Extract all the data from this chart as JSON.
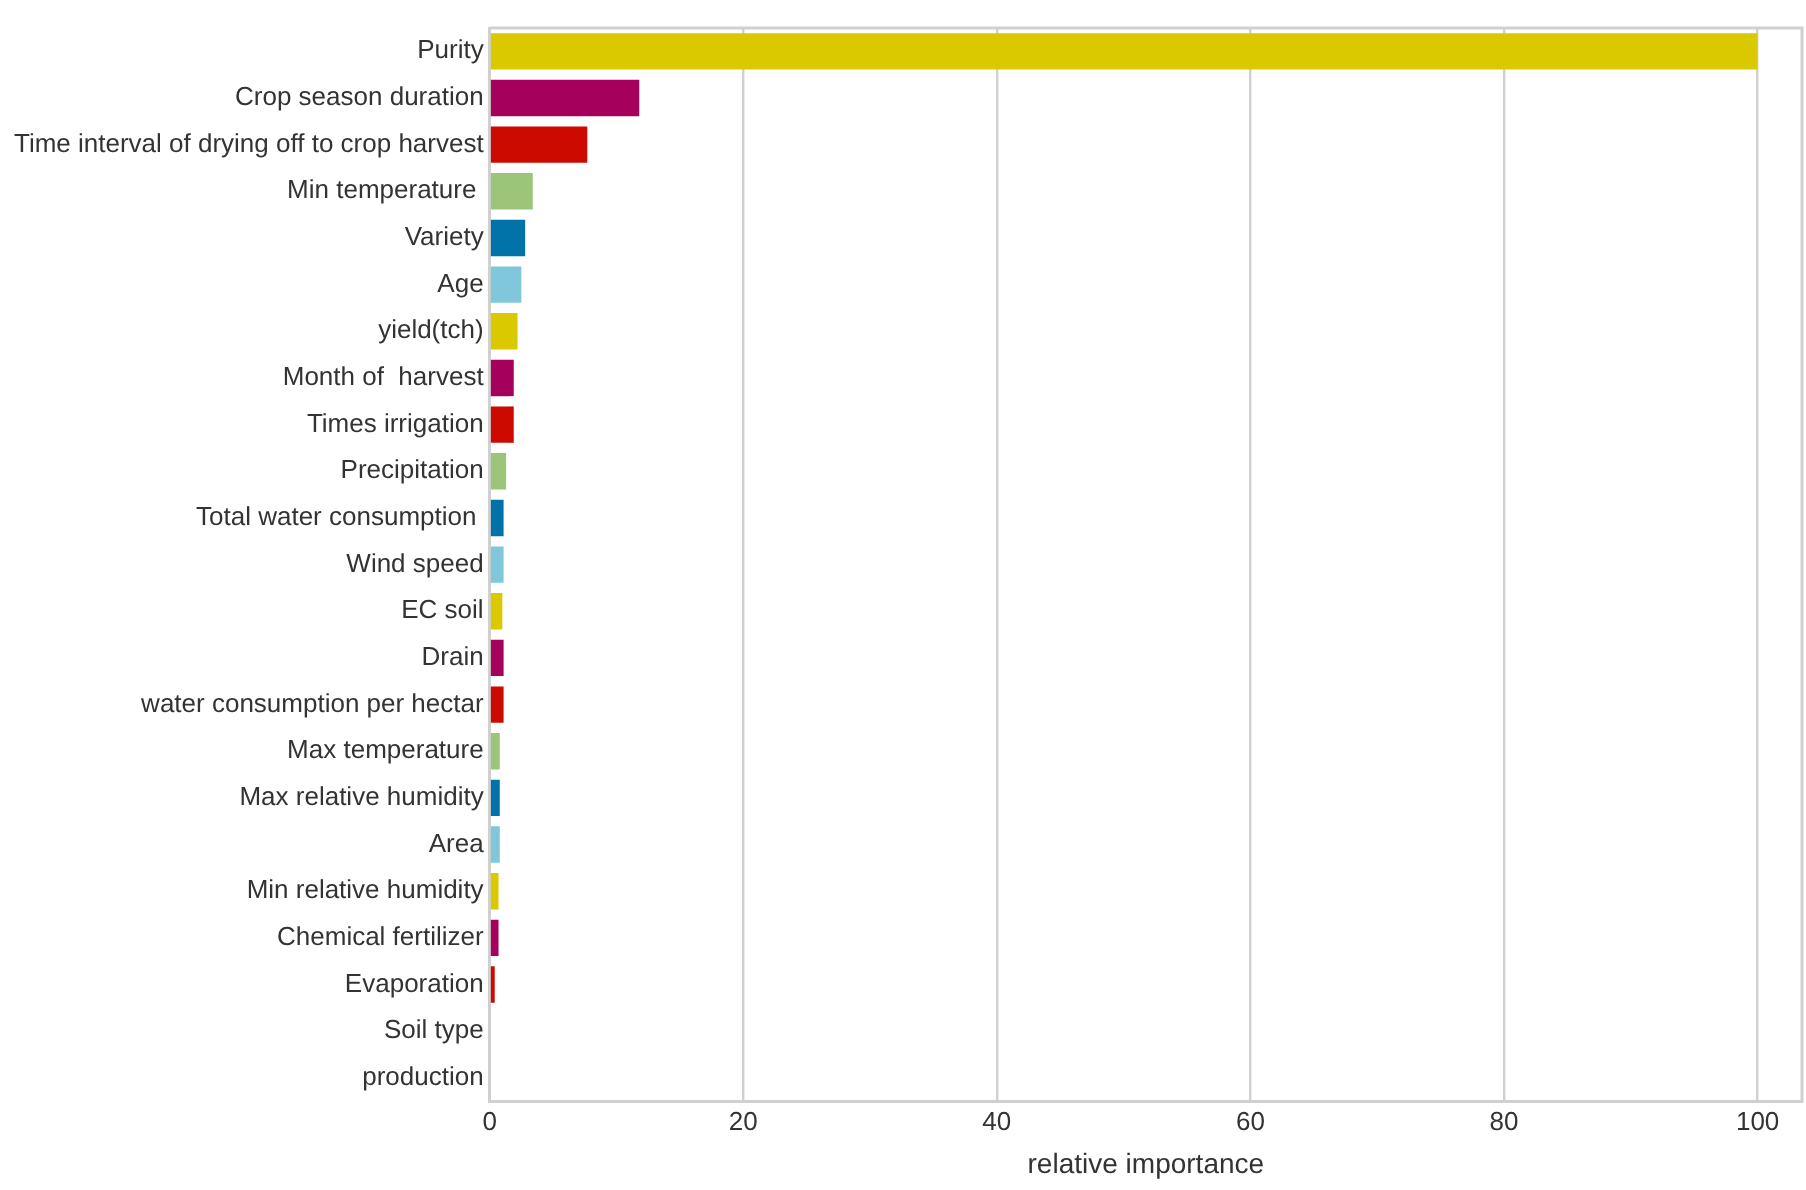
{
  "chart_data": {
    "type": "bar",
    "orientation": "horizontal",
    "xlabel": "relative importance",
    "categories": [
      "Purity",
      "Crop season duration",
      "Time interval of drying off to crop harvest",
      "Min temperature ",
      "Variety",
      "Age",
      "yield(tch)",
      "Month of  harvest",
      "Times irrigation",
      "Precipitation",
      "Total water consumption ",
      "Wind speed",
      "EC soil",
      "Drain",
      "water consumption per hectar",
      "Max temperature",
      "Max relative humidity",
      "Area",
      "Min relative humidity",
      "Chemical fertilizer",
      "Evaporation",
      "Soil type",
      "production"
    ],
    "values": [
      100,
      11.8,
      7.7,
      3.4,
      2.8,
      2.5,
      2.2,
      1.9,
      1.9,
      1.3,
      1.1,
      1.1,
      1.0,
      1.1,
      1.1,
      0.8,
      0.8,
      0.8,
      0.7,
      0.7,
      0.4,
      0,
      0
    ],
    "colors": [
      "#dbc900",
      "#a4005c",
      "#cc0a00",
      "#9cc57a",
      "#0173a8",
      "#80c7dc",
      "#dbc900",
      "#a4005c",
      "#cc0a00",
      "#9cc57a",
      "#0173a8",
      "#80c7dc",
      "#dbc900",
      "#a4005c",
      "#cc0a00",
      "#9cc57a",
      "#0173a8",
      "#80c7dc",
      "#dbc900",
      "#a4005c",
      "#cc0a00",
      "#9cc57a",
      "#0173a8"
    ],
    "xlim": [
      0,
      103.5
    ],
    "xticks": [
      0,
      20,
      40,
      60,
      80,
      100
    ],
    "grid": "x",
    "legend": false
  }
}
